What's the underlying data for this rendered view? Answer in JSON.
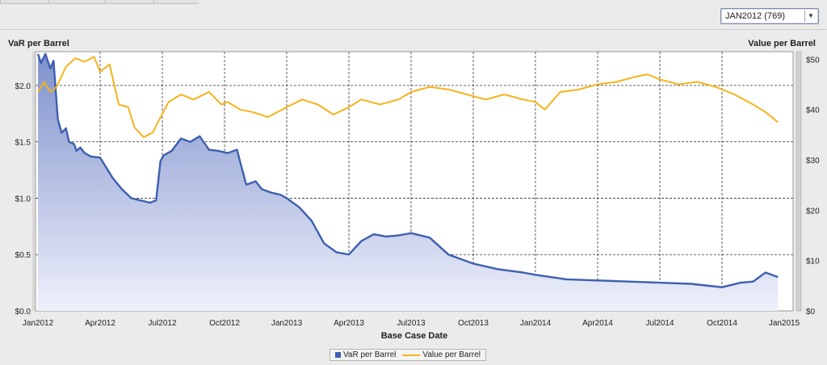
{
  "toolbar": {
    "dropdown_value": "JAN2012 (769)"
  },
  "colors": {
    "var_line": "#3e5fb0",
    "var_fill_top": "#7e91cc",
    "var_fill_bottom": "#eef0fa",
    "value_line": "#f7b21b",
    "grid": "#333333",
    "plot_bg": "#ffffff"
  },
  "chart_data": {
    "type": "area",
    "xlabel": "Base Case Date",
    "ylabel_left": "VaR per Barrel",
    "ylabel_right": "Value per Barrel",
    "x_ticks": [
      "Jan2012",
      "Apr2012",
      "Jul2012",
      "Oct2012",
      "Jan2013",
      "Apr2013",
      "Jul2013",
      "Oct2013",
      "Jan2014",
      "Apr2014",
      "Jul2014",
      "Oct2014",
      "Jan2015"
    ],
    "y_left_ticks": [
      "$0.0",
      "$0.5",
      "$1.0",
      "$1.5",
      "$2.0"
    ],
    "y_right_ticks": [
      "$0",
      "$10",
      "$20",
      "$30",
      "$40",
      "$50"
    ],
    "y_left_range": [
      0,
      2.3
    ],
    "y_right_range": [
      0,
      51.5
    ],
    "legend_position": "bottom",
    "series": [
      {
        "name": "VaR per Barrel",
        "axis": "left",
        "x": [
          0.0,
          0.05,
          0.12,
          0.2,
          0.25,
          0.32,
          0.38,
          0.45,
          0.5,
          0.58,
          0.62,
          0.68,
          0.75,
          0.85,
          1.0,
          1.2,
          1.35,
          1.5,
          1.65,
          1.8,
          1.9,
          1.97,
          2.02,
          2.15,
          2.3,
          2.45,
          2.6,
          2.75,
          2.9,
          3.05,
          3.2,
          3.35,
          3.5,
          3.6,
          3.75,
          3.9,
          4.0,
          4.2,
          4.4,
          4.6,
          4.8,
          5.0,
          5.2,
          5.4,
          5.6,
          5.8,
          6.0,
          6.3,
          6.6,
          6.9,
          7.0,
          7.4,
          7.8,
          8.0,
          8.5,
          9.0,
          9.5,
          10.0,
          10.5,
          11.0,
          11.3,
          11.5,
          11.7,
          11.9
        ],
        "values": [
          2.28,
          2.2,
          2.28,
          2.15,
          2.22,
          1.7,
          1.58,
          1.62,
          1.5,
          1.48,
          1.42,
          1.45,
          1.4,
          1.37,
          1.36,
          1.18,
          1.08,
          1.0,
          0.98,
          0.96,
          0.98,
          1.33,
          1.38,
          1.42,
          1.53,
          1.5,
          1.55,
          1.43,
          1.42,
          1.4,
          1.43,
          1.12,
          1.15,
          1.08,
          1.05,
          1.03,
          1.0,
          0.92,
          0.8,
          0.6,
          0.52,
          0.5,
          0.62,
          0.68,
          0.66,
          0.67,
          0.69,
          0.65,
          0.5,
          0.44,
          0.42,
          0.37,
          0.34,
          0.32,
          0.28,
          0.27,
          0.26,
          0.25,
          0.24,
          0.21,
          0.25,
          0.26,
          0.34,
          0.3
        ]
      },
      {
        "name": "Value per Barrel",
        "axis": "right",
        "x": [
          0.0,
          0.1,
          0.2,
          0.3,
          0.45,
          0.6,
          0.75,
          0.9,
          1.0,
          1.15,
          1.3,
          1.45,
          1.55,
          1.7,
          1.85,
          1.95,
          2.1,
          2.3,
          2.5,
          2.75,
          2.95,
          3.05,
          3.25,
          3.45,
          3.7,
          4.0,
          4.25,
          4.5,
          4.75,
          5.0,
          5.2,
          5.5,
          5.8,
          6.0,
          6.3,
          6.6,
          6.9,
          7.2,
          7.5,
          7.8,
          8.0,
          8.15,
          8.4,
          8.7,
          9.0,
          9.3,
          9.6,
          9.8,
          10.0,
          10.3,
          10.6,
          10.9,
          11.2,
          11.5,
          11.7,
          11.9
        ],
        "values": [
          43.5,
          45.5,
          43.5,
          44.5,
          48.5,
          50.2,
          49.5,
          50.5,
          47.5,
          49.0,
          41.0,
          40.5,
          36.5,
          34.5,
          35.5,
          38.0,
          41.5,
          43.0,
          42.0,
          43.5,
          41.0,
          41.5,
          40.0,
          39.5,
          38.5,
          40.5,
          42.0,
          41.0,
          39.0,
          40.5,
          42.0,
          41.0,
          42.0,
          43.5,
          44.5,
          44.0,
          43.0,
          42.0,
          43.0,
          42.0,
          41.5,
          40.0,
          43.5,
          44.0,
          45.0,
          45.5,
          46.5,
          47.0,
          46.0,
          45.0,
          45.5,
          44.5,
          43.0,
          41.0,
          39.5,
          37.5
        ]
      }
    ]
  },
  "legend": {
    "items": [
      {
        "label": "VaR per Barrel"
      },
      {
        "label": "Value per Barrel"
      }
    ]
  }
}
